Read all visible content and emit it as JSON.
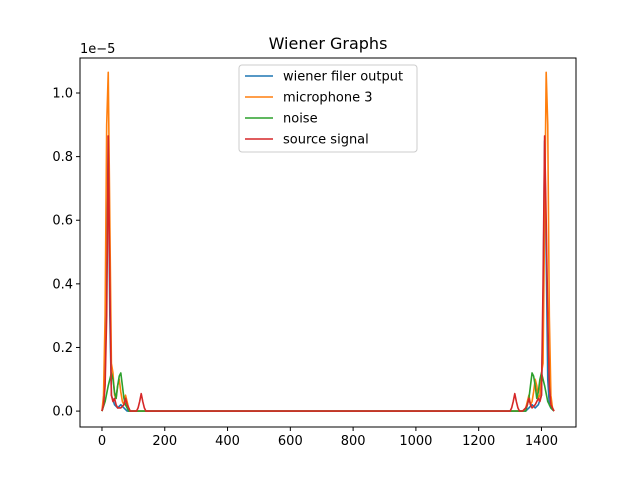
{
  "chart_data": {
    "type": "line",
    "title": "Wiener Graphs",
    "xlabel": "",
    "ylabel": "",
    "y_offset_label": "1e−5",
    "xlim": [
      -70,
      1510
    ],
    "ylim": [
      -0.05,
      1.11
    ],
    "xticks": [
      0,
      200,
      400,
      600,
      800,
      1000,
      1200,
      1400
    ],
    "yticks": [
      0.0,
      0.2,
      0.4,
      0.6,
      0.8,
      1.0
    ],
    "xtick_labels": [
      "0",
      "200",
      "400",
      "600",
      "800",
      "1000",
      "1200",
      "1400"
    ],
    "ytick_labels": [
      "0.0",
      "0.2",
      "0.4",
      "0.6",
      "0.8",
      "1.0"
    ],
    "grid": false,
    "legend_position": "upper center",
    "series": [
      {
        "name": "wiener filer output",
        "color": "#1f77b4",
        "x": [
          0,
          5,
          10,
          15,
          20,
          25,
          30,
          40,
          50,
          60,
          70,
          80,
          90,
          100,
          1340,
          1350,
          1360,
          1370,
          1380,
          1390,
          1400,
          1405,
          1410,
          1415,
          1420,
          1425,
          1430,
          1440
        ],
        "values": [
          0.0,
          0.02,
          0.1,
          0.5,
          0.85,
          0.3,
          0.05,
          0.02,
          0.01,
          0.02,
          0.01,
          0.0,
          0.0,
          0.0,
          0.0,
          0.0,
          0.01,
          0.02,
          0.01,
          0.02,
          0.05,
          0.3,
          0.85,
          0.5,
          0.1,
          0.02,
          0.01,
          0.0
        ]
      },
      {
        "name": "microphone 3",
        "color": "#ff7f0e",
        "x": [
          0,
          5,
          10,
          15,
          20,
          25,
          30,
          35,
          40,
          45,
          50,
          55,
          60,
          65,
          70,
          75,
          80,
          85,
          90,
          100,
          110,
          120,
          1320,
          1330,
          1340,
          1350,
          1355,
          1360,
          1365,
          1370,
          1375,
          1380,
          1385,
          1390,
          1395,
          1400,
          1405,
          1410,
          1415,
          1420,
          1425,
          1430,
          1435,
          1440
        ],
        "values": [
          0.0,
          0.05,
          0.3,
          0.9,
          1.065,
          0.6,
          0.15,
          0.12,
          0.05,
          0.04,
          0.08,
          0.1,
          0.06,
          0.03,
          0.02,
          0.05,
          0.03,
          0.01,
          0.0,
          0.0,
          0.0,
          0.0,
          0.0,
          0.0,
          0.0,
          0.01,
          0.03,
          0.05,
          0.02,
          0.03,
          0.06,
          0.1,
          0.08,
          0.04,
          0.05,
          0.12,
          0.15,
          0.6,
          1.065,
          0.9,
          0.3,
          0.05,
          0.01,
          0.0
        ]
      },
      {
        "name": "noise",
        "color": "#2ca02c",
        "x": [
          0,
          10,
          20,
          25,
          30,
          35,
          40,
          45,
          50,
          55,
          60,
          65,
          70,
          75,
          80,
          85,
          90,
          100,
          1340,
          1350,
          1355,
          1360,
          1365,
          1370,
          1375,
          1380,
          1385,
          1390,
          1395,
          1400,
          1405,
          1410,
          1420,
          1430,
          1440
        ],
        "values": [
          0.0,
          0.03,
          0.08,
          0.1,
          0.12,
          0.1,
          0.06,
          0.04,
          0.08,
          0.11,
          0.12,
          0.08,
          0.04,
          0.02,
          0.01,
          0.0,
          0.0,
          0.0,
          0.0,
          0.0,
          0.02,
          0.04,
          0.08,
          0.12,
          0.11,
          0.08,
          0.04,
          0.06,
          0.1,
          0.12,
          0.1,
          0.08,
          0.03,
          0.01,
          0.0
        ]
      },
      {
        "name": "source signal",
        "color": "#d62728",
        "x": [
          0,
          5,
          10,
          15,
          18,
          20,
          25,
          30,
          35,
          40,
          45,
          50,
          60,
          70,
          75,
          80,
          85,
          90,
          100,
          110,
          115,
          120,
          125,
          130,
          135,
          140,
          200,
          1300,
          1305,
          1310,
          1315,
          1320,
          1325,
          1330,
          1340,
          1350,
          1355,
          1360,
          1365,
          1370,
          1380,
          1390,
          1395,
          1400,
          1405,
          1410,
          1415,
          1420,
          1425,
          1430,
          1435,
          1440
        ],
        "values": [
          0.0,
          0.02,
          0.08,
          0.3,
          0.6,
          0.865,
          0.4,
          0.05,
          0.03,
          0.04,
          0.02,
          0.01,
          0.01,
          0.02,
          0.04,
          0.02,
          0.01,
          0.0,
          0.0,
          0.0,
          0.01,
          0.03,
          0.055,
          0.03,
          0.01,
          0.0,
          0.0,
          0.0,
          0.01,
          0.03,
          0.055,
          0.03,
          0.01,
          0.0,
          0.0,
          0.01,
          0.02,
          0.04,
          0.02,
          0.01,
          0.02,
          0.04,
          0.03,
          0.05,
          0.4,
          0.865,
          0.6,
          0.3,
          0.08,
          0.02,
          0.01,
          0.0
        ]
      }
    ]
  }
}
